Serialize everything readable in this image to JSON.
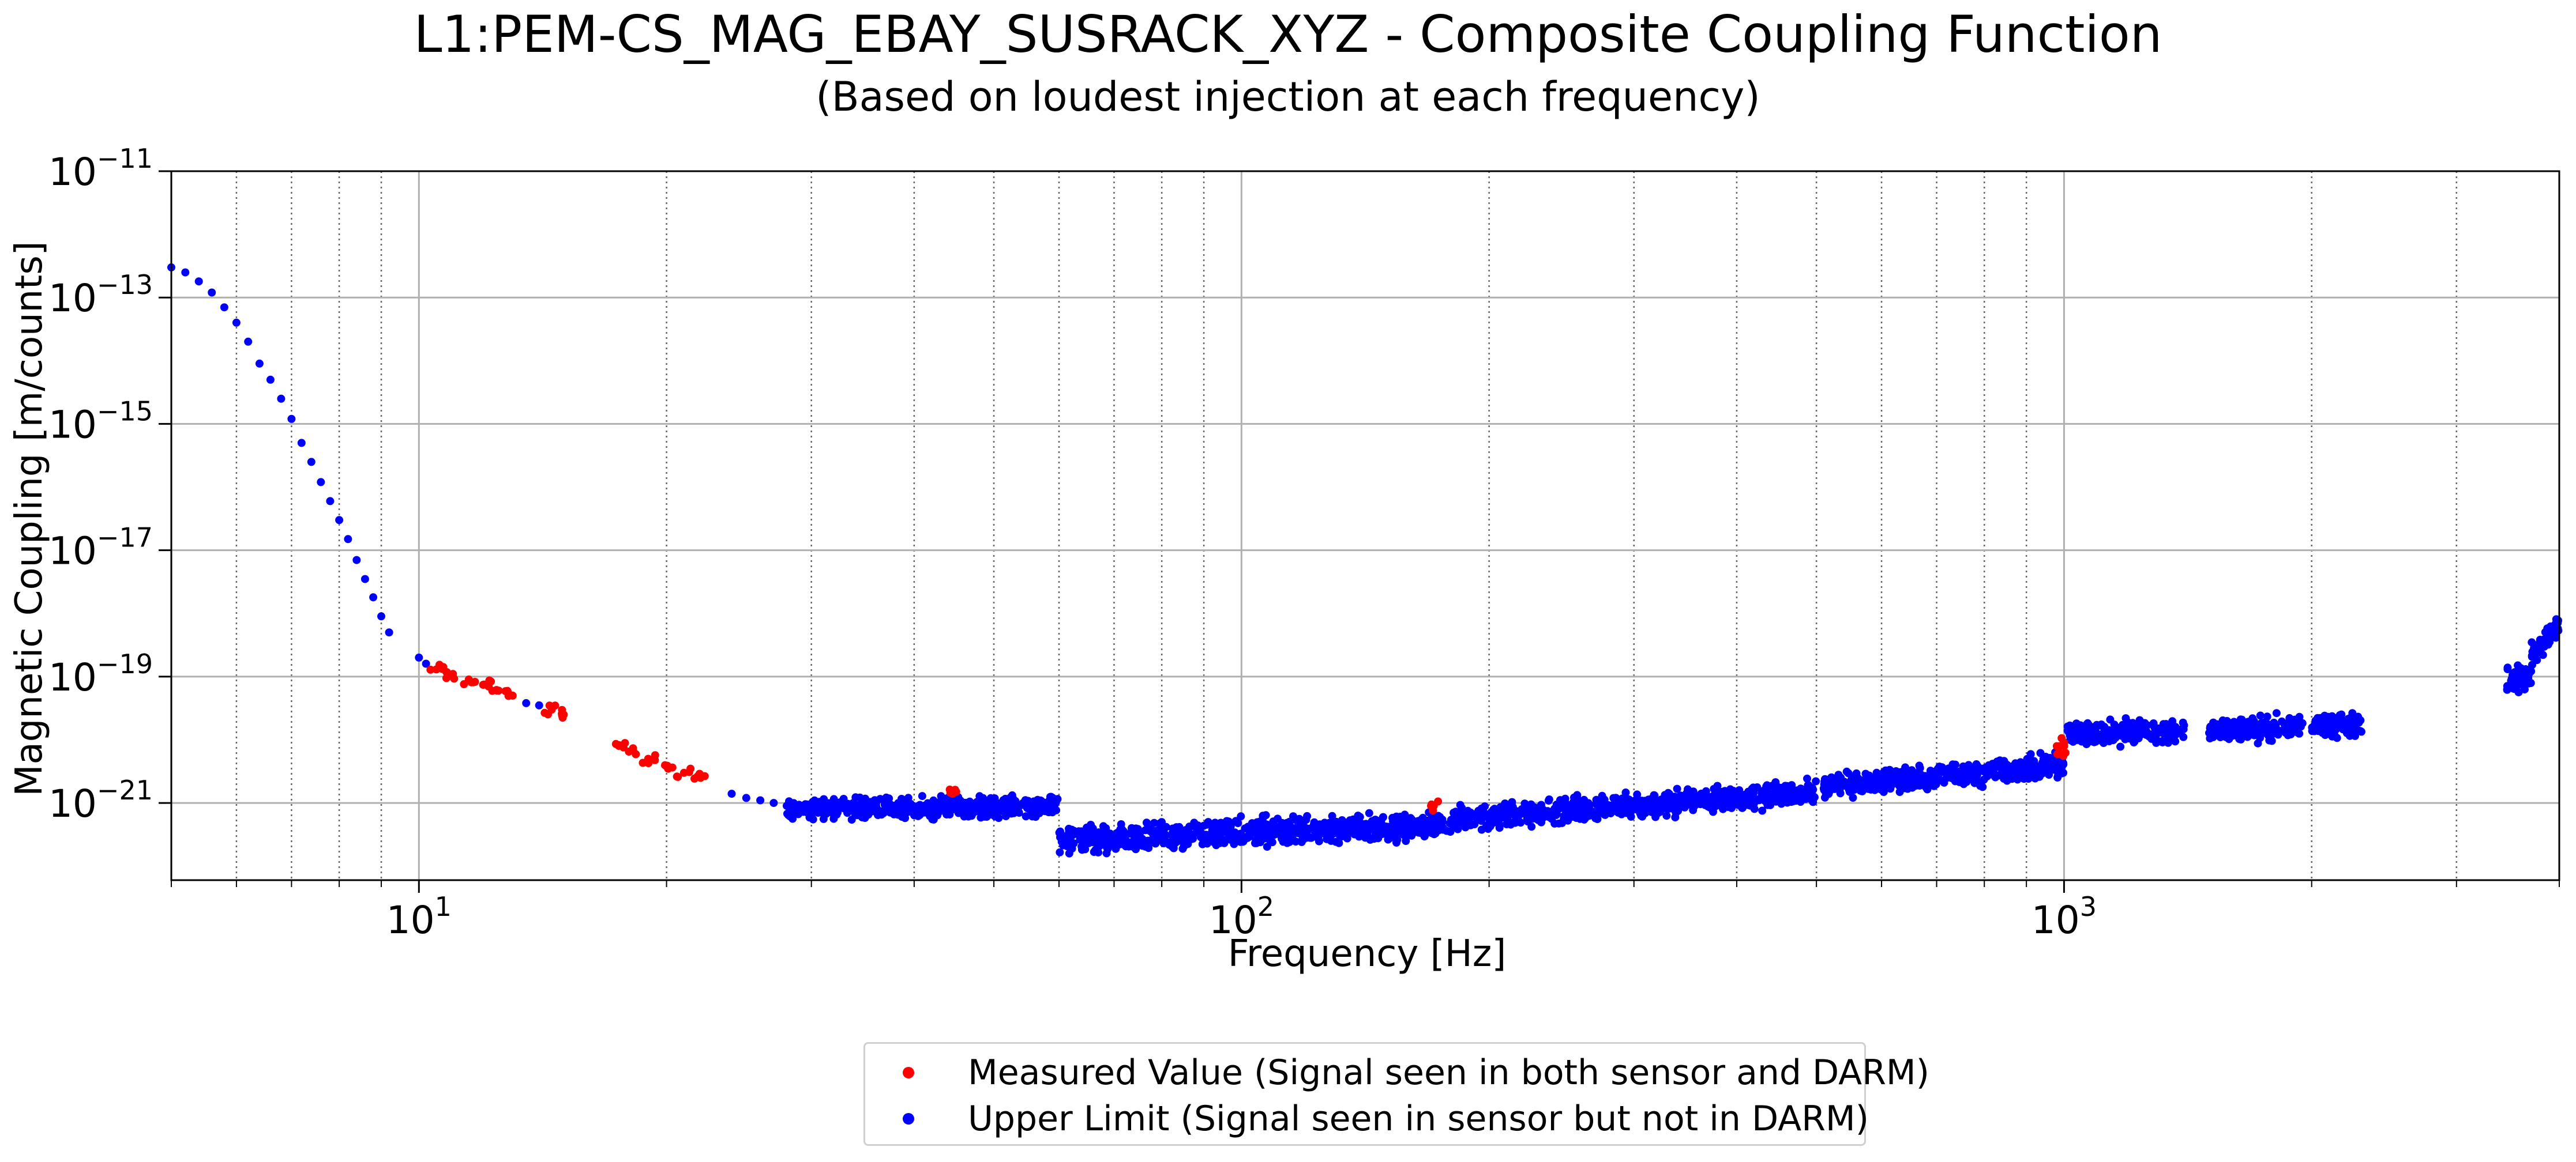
{
  "chart_data": {
    "type": "scatter",
    "title": "L1:PEM-CS_MAG_EBAY_SUSRACK_XYZ - Composite Coupling Function",
    "subtitle": "(Based on loudest injection at each frequency)",
    "xlabel": "Frequency [Hz]",
    "ylabel": "Magnetic Coupling [m/counts]",
    "xscale": "log",
    "yscale": "log",
    "xlim": [
      5,
      4000
    ],
    "ylim": [
      6e-23,
      1e-11
    ],
    "grid": true,
    "legend_position": "below plot, centered",
    "x_tick_labels": [
      {
        "value": 10,
        "base": "10",
        "exp": "1"
      },
      {
        "value": 100,
        "base": "10",
        "exp": "2"
      },
      {
        "value": 1000,
        "base": "10",
        "exp": "3"
      }
    ],
    "y_tick_labels": [
      {
        "value": 1e-11,
        "base": "10",
        "exp": "−11"
      },
      {
        "value": 1e-13,
        "base": "10",
        "exp": "−13"
      },
      {
        "value": 1e-15,
        "base": "10",
        "exp": "−15"
      },
      {
        "value": 1e-17,
        "base": "10",
        "exp": "−17"
      },
      {
        "value": 1e-19,
        "base": "10",
        "exp": "−19"
      },
      {
        "value": 1e-21,
        "base": "10",
        "exp": "−21"
      }
    ],
    "series": [
      {
        "name": "Measured Value (Signal seen in both sensor and DARM)",
        "color": "#ff0000",
        "x": [
          10.5,
          11,
          11.5,
          12,
          12.5,
          13,
          14.5,
          15,
          17.5,
          18,
          19,
          20,
          21,
          22,
          45,
          170,
          990,
          1000
        ],
        "y": [
          1.3e-19,
          1.1e-19,
          9e-20,
          7.5e-20,
          6e-20,
          5e-20,
          3e-20,
          2.5e-20,
          8e-21,
          6.5e-21,
          5e-21,
          3.8e-21,
          3e-21,
          2.5e-21,
          1.5e-21,
          9e-22,
          6e-21,
          9e-21
        ]
      },
      {
        "name": "Upper Limit (Signal seen in sensor but not in DARM)",
        "color": "#0000ff",
        "x": [
          5.0,
          5.2,
          5.4,
          5.6,
          5.8,
          6.0,
          6.2,
          6.4,
          6.6,
          6.8,
          7.0,
          7.2,
          7.4,
          7.6,
          7.8,
          8.0,
          8.2,
          8.4,
          8.6,
          8.8,
          9.0,
          9.2,
          10.0,
          10.2,
          13.5,
          14.0,
          24.0,
          25.0,
          26.0,
          27.0,
          28.0
        ],
        "y": [
          3e-13,
          2.5e-13,
          1.8e-13,
          1.2e-13,
          7e-14,
          4e-14,
          2e-14,
          9e-15,
          5e-15,
          2.5e-15,
          1.2e-15,
          5e-16,
          2.5e-16,
          1.2e-16,
          6e-17,
          3e-17,
          1.5e-17,
          7e-18,
          3.5e-18,
          1.8e-18,
          9e-19,
          5e-19,
          2e-19,
          1.6e-19,
          3.8e-20,
          3.5e-20,
          1.4e-21,
          1.2e-21,
          1.1e-21,
          1e-21,
          9e-22
        ],
        "bands": [
          {
            "x_range": [
              28,
              60
            ],
            "y_at_start": 8e-22,
            "y_at_end": 9e-22,
            "spread_decades": 0.25
          },
          {
            "x_range": [
              60,
              180
            ],
            "y_at_start": 2.5e-22,
            "y_at_end": 4.5e-22,
            "spread_decades": 0.35
          },
          {
            "x_range": [
              180,
              500
            ],
            "y_at_start": 5.5e-22,
            "y_at_end": 1.5e-21,
            "spread_decades": 0.3
          },
          {
            "x_range": [
              510,
              1000
            ],
            "y_at_start": 1.8e-21,
            "y_at_end": 4e-21,
            "spread_decades": 0.3
          },
          {
            "x_range": [
              1010,
              1400
            ],
            "y_at_start": 1.2e-20,
            "y_at_end": 1.4e-20,
            "spread_decades": 0.3
          },
          {
            "x_range": [
              1500,
              1950
            ],
            "y_at_start": 1.4e-20,
            "y_at_end": 1.6e-20,
            "spread_decades": 0.3
          },
          {
            "x_range": [
              2000,
              2300
            ],
            "y_at_start": 1.6e-20,
            "y_at_end": 1.8e-20,
            "spread_decades": 0.3
          },
          {
            "x_range": [
              3450,
              3700
            ],
            "y_at_start": 8e-20,
            "y_at_end": 1.1e-19,
            "spread_decades": 0.3
          },
          {
            "x_range": [
              3700,
              4000
            ],
            "y_at_start": 2e-19,
            "y_at_end": 7e-19,
            "spread_decades": 0.3
          }
        ]
      }
    ]
  }
}
